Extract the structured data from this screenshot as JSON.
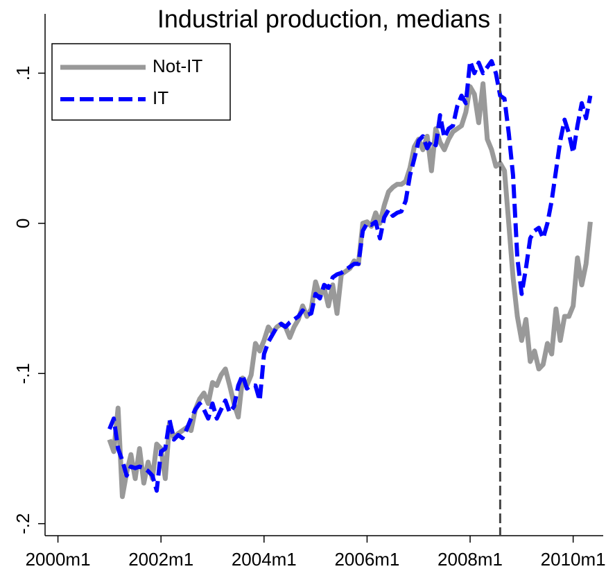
{
  "chart_data": {
    "type": "line",
    "title": "Industrial production, medians",
    "x": [
      "2001m1",
      "2001m2",
      "2001m3",
      "2001m4",
      "2001m5",
      "2001m6",
      "2001m7",
      "2001m8",
      "2001m9",
      "2001m10",
      "2001m11",
      "2001m12",
      "2002m1",
      "2002m2",
      "2002m3",
      "2002m4",
      "2002m5",
      "2002m6",
      "2002m7",
      "2002m8",
      "2002m9",
      "2002m10",
      "2002m11",
      "2002m12",
      "2003m1",
      "2003m2",
      "2003m3",
      "2003m4",
      "2003m5",
      "2003m6",
      "2003m7",
      "2003m8",
      "2003m9",
      "2003m10",
      "2003m11",
      "2003m12",
      "2004m1",
      "2004m2",
      "2004m3",
      "2004m4",
      "2004m5",
      "2004m6",
      "2004m7",
      "2004m8",
      "2004m9",
      "2004m10",
      "2004m11",
      "2004m12",
      "2005m1",
      "2005m2",
      "2005m3",
      "2005m4",
      "2005m5",
      "2005m6",
      "2005m7",
      "2005m8",
      "2005m9",
      "2005m10",
      "2005m11",
      "2005m12",
      "2006m1",
      "2006m2",
      "2006m3",
      "2006m4",
      "2006m5",
      "2006m6",
      "2006m7",
      "2006m8",
      "2006m9",
      "2006m10",
      "2006m11",
      "2006m12",
      "2007m1",
      "2007m2",
      "2007m3",
      "2007m4",
      "2007m5",
      "2007m6",
      "2007m7",
      "2007m8",
      "2007m9",
      "2007m10",
      "2007m11",
      "2007m12",
      "2008m1",
      "2008m2",
      "2008m3",
      "2008m4",
      "2008m5",
      "2008m6",
      "2008m7",
      "2008m8",
      "2008m9",
      "2008m10",
      "2008m11",
      "2008m12",
      "2009m1",
      "2009m2",
      "2009m3",
      "2009m4",
      "2009m5",
      "2009m6",
      "2009m7",
      "2009m8",
      "2009m9",
      "2009m10",
      "2009m11",
      "2009m12",
      "2010m1",
      "2010m2",
      "2010m3",
      "2010m4",
      "2010m5"
    ],
    "series": [
      {
        "name": "Not-IT",
        "color": "#999999",
        "dash": false,
        "values": [
          -0.144,
          -0.152,
          -0.123,
          -0.182,
          -0.166,
          -0.154,
          -0.17,
          -0.15,
          -0.173,
          -0.159,
          -0.17,
          -0.147,
          -0.15,
          -0.17,
          -0.133,
          -0.143,
          -0.14,
          -0.138,
          -0.136,
          -0.138,
          -0.124,
          -0.117,
          -0.113,
          -0.12,
          -0.106,
          -0.108,
          -0.101,
          -0.097,
          -0.108,
          -0.12,
          -0.129,
          -0.103,
          -0.108,
          -0.101,
          -0.08,
          -0.085,
          -0.078,
          -0.069,
          -0.073,
          -0.069,
          -0.067,
          -0.069,
          -0.076,
          -0.069,
          -0.064,
          -0.055,
          -0.062,
          -0.057,
          -0.039,
          -0.048,
          -0.043,
          -0.055,
          -0.041,
          -0.06,
          -0.034,
          -0.032,
          -0.03,
          -0.025,
          -0.027,
          0.0,
          0.001,
          -0.002,
          0.007,
          0.0,
          0.012,
          0.021,
          0.024,
          0.026,
          0.026,
          0.028,
          0.037,
          0.051,
          0.056,
          0.049,
          0.058,
          0.035,
          0.063,
          0.054,
          0.049,
          0.056,
          0.061,
          0.063,
          0.065,
          0.074,
          0.091,
          0.086,
          0.067,
          0.093,
          0.056,
          0.049,
          0.038,
          0.04,
          0.035,
          0.0,
          -0.036,
          -0.062,
          -0.078,
          -0.064,
          -0.092,
          -0.085,
          -0.097,
          -0.094,
          -0.08,
          -0.087,
          -0.057,
          -0.078,
          -0.062,
          -0.062,
          -0.055,
          -0.023,
          -0.041,
          -0.027,
          0.001
        ]
      },
      {
        "name": "IT",
        "color": "#0000ff",
        "dash": true,
        "values": [
          -0.137,
          -0.13,
          -0.15,
          -0.158,
          -0.168,
          -0.162,
          -0.163,
          -0.162,
          -0.163,
          -0.165,
          -0.168,
          -0.178,
          -0.152,
          -0.15,
          -0.131,
          -0.144,
          -0.141,
          -0.143,
          -0.137,
          -0.13,
          -0.124,
          -0.12,
          -0.124,
          -0.13,
          -0.12,
          -0.13,
          -0.124,
          -0.118,
          -0.126,
          -0.122,
          -0.108,
          -0.101,
          -0.11,
          -0.108,
          -0.108,
          -0.118,
          -0.087,
          -0.079,
          -0.074,
          -0.069,
          -0.067,
          -0.069,
          -0.066,
          -0.064,
          -0.062,
          -0.058,
          -0.061,
          -0.06,
          -0.047,
          -0.05,
          -0.041,
          -0.043,
          -0.036,
          -0.034,
          -0.033,
          -0.031,
          -0.029,
          -0.027,
          -0.027,
          -0.005,
          0.0,
          -0.001,
          0.001,
          -0.01,
          0.004,
          0.009,
          0.005,
          0.007,
          0.008,
          0.015,
          0.032,
          0.043,
          0.055,
          0.058,
          0.05,
          0.055,
          0.052,
          0.072,
          0.057,
          0.063,
          0.065,
          0.078,
          0.085,
          0.08,
          0.108,
          0.1,
          0.107,
          0.1,
          0.104,
          0.108,
          0.1,
          0.085,
          0.083,
          0.06,
          0.032,
          -0.023,
          -0.047,
          -0.03,
          -0.01,
          -0.005,
          -0.003,
          -0.01,
          0.0,
          0.015,
          0.035,
          0.055,
          0.069,
          0.06,
          0.047,
          0.065,
          0.08,
          0.07,
          0.085
        ]
      }
    ],
    "xlim": [
      "1999m10",
      "2010m8"
    ],
    "xticks": [
      "2000m1",
      "2002m1",
      "2004m1",
      "2006m1",
      "2008m1",
      "2010m1"
    ],
    "ylim": [
      -0.208,
      0.121
    ],
    "yticks": [
      {
        "value": 0.1,
        "label": ".1"
      },
      0,
      {
        "value": -0.1,
        "label": "-.1"
      },
      {
        "value": -0.2,
        "label": "-.2"
      }
    ],
    "vline": "2008m8",
    "legend": "top-left",
    "grid": false
  }
}
